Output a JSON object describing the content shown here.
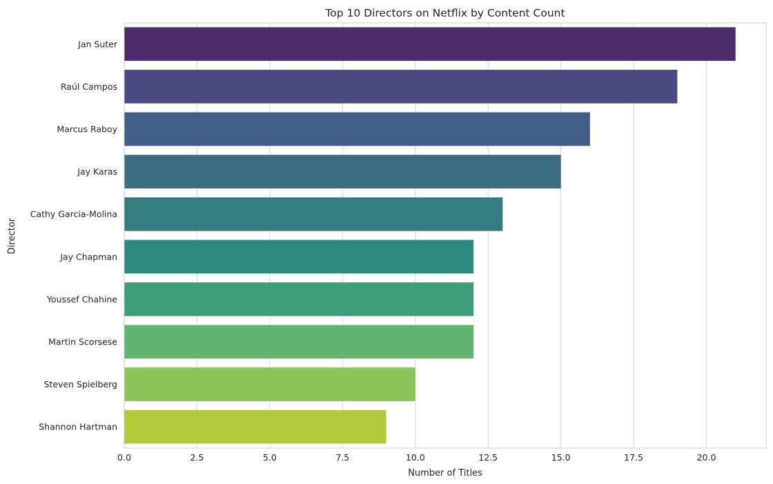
{
  "chart_data": {
    "type": "bar",
    "orientation": "horizontal",
    "title": "Top 10 Directors on Netflix by Content Count",
    "xlabel": "Number of Titles",
    "ylabel": "Director",
    "categories": [
      "Jan Suter",
      "Raúl Campos",
      "Marcus Raboy",
      "Jay Karas",
      "Cathy Garcia-Molina",
      "Jay Chapman",
      "Youssef Chahine",
      "Martin Scorsese",
      "Steven Spielberg",
      "Shannon Hartman"
    ],
    "values": [
      21,
      19,
      16,
      15,
      13,
      12,
      12,
      12,
      10,
      9
    ],
    "colors": [
      "#4a2c6b",
      "#4a4a82",
      "#425e87",
      "#3b6e81",
      "#337c80",
      "#2f8a7e",
      "#3d9f78",
      "#61b56f",
      "#8ac45a",
      "#b2c93a"
    ],
    "xlim": [
      0,
      22.05
    ],
    "xticks": [
      0,
      2.5,
      5,
      7.5,
      10,
      12.5,
      15,
      17.5,
      20
    ],
    "xtick_labels": [
      "0.0",
      "2.5",
      "5.0",
      "7.5",
      "10.0",
      "12.5",
      "15.0",
      "17.5",
      "20.0"
    ],
    "grid": true,
    "grid_color": "#d9d9d9",
    "frame_color": "#cccccc",
    "background": "#ffffff"
  }
}
